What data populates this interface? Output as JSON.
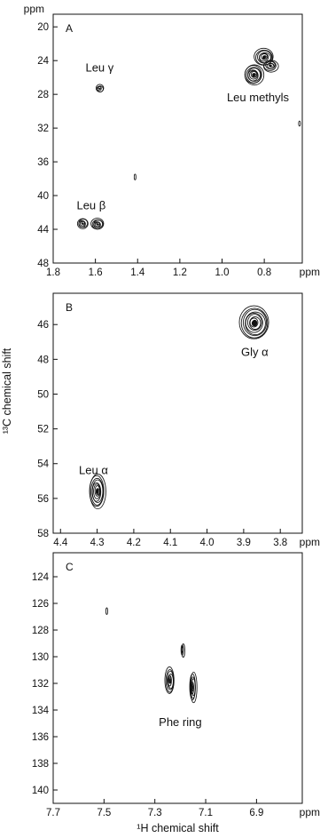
{
  "chart_data": [
    {
      "type": "contour",
      "panel": "A",
      "x_unit": "ppm",
      "y_unit": "ppm",
      "xlim": [
        1.8,
        0.62
      ],
      "ylim": [
        48,
        18.5
      ],
      "xticks": [
        1.8,
        1.6,
        1.4,
        1.2,
        1.0,
        0.8
      ],
      "xtick_labels": [
        "1.8",
        "1.6",
        "1.4",
        "1.2",
        "1.0",
        "0.8"
      ],
      "yticks": [
        20,
        24,
        28,
        32,
        36,
        40,
        44,
        48
      ],
      "ytick_labels": [
        "20",
        "24",
        "28",
        "32",
        "36",
        "40",
        "44",
        "48"
      ],
      "annotations": [
        {
          "text": "Leu γ",
          "x": 1.58,
          "y": 25.3
        },
        {
          "text": "Leu methyls",
          "x": 0.83,
          "y": 28.8
        },
        {
          "text": "Leu β",
          "x": 1.62,
          "y": 41.6
        }
      ],
      "peaks": [
        {
          "x": 0.8,
          "y": 23.6,
          "w": 0.045,
          "h": 1.0,
          "levels": 7
        },
        {
          "x": 0.85,
          "y": 25.7,
          "w": 0.045,
          "h": 1.2,
          "levels": 8
        },
        {
          "x": 0.77,
          "y": 24.6,
          "w": 0.035,
          "h": 0.7,
          "levels": 5
        },
        {
          "x": 1.58,
          "y": 27.3,
          "w": 0.018,
          "h": 0.45,
          "levels": 4
        },
        {
          "x": 1.66,
          "y": 43.3,
          "w": 0.025,
          "h": 0.6,
          "levels": 5
        },
        {
          "x": 1.59,
          "y": 43.4,
          "w": 0.03,
          "h": 0.65,
          "levels": 6
        },
        {
          "x": 1.41,
          "y": 37.8,
          "w": 0.004,
          "h": 0.35,
          "levels": 1
        },
        {
          "x": 0.63,
          "y": 31.4,
          "w": 0.004,
          "h": 0.3,
          "levels": 1
        }
      ]
    },
    {
      "type": "contour",
      "panel": "B",
      "x_unit": "ppm",
      "ylabel": "¹³C chemical shift",
      "xlim": [
        4.42,
        3.74
      ],
      "ylim": [
        58,
        44.2
      ],
      "xticks": [
        4.4,
        4.3,
        4.2,
        4.1,
        4.0,
        3.9,
        3.8
      ],
      "xtick_labels": [
        "4.4",
        "4.3",
        "4.2",
        "4.1",
        "4.0",
        "3.9",
        "3.8"
      ],
      "yticks": [
        46,
        48,
        50,
        52,
        54,
        56,
        58
      ],
      "ytick_labels": [
        "46",
        "48",
        "50",
        "52",
        "54",
        "56",
        "58"
      ],
      "annotations": [
        {
          "text": "Gly α",
          "x": 3.87,
          "y": 47.8
        },
        {
          "text": "Leu α",
          "x": 4.31,
          "y": 54.6
        }
      ],
      "peaks": [
        {
          "x": 3.87,
          "y": 45.9,
          "w": 0.04,
          "h": 0.95,
          "levels": 9
        },
        {
          "x": 4.3,
          "y": 55.6,
          "w": 0.022,
          "h": 1.0,
          "levels": 8
        }
      ]
    },
    {
      "type": "contour",
      "panel": "C",
      "xlabel": "¹H chemical shift",
      "x_unit": "ppm",
      "xlim": [
        7.7,
        6.72
      ],
      "ylim": [
        141,
        122.2
      ],
      "xticks": [
        7.7,
        7.5,
        7.3,
        7.1,
        6.9
      ],
      "xtick_labels": [
        "7.7",
        "7.5",
        "7.3",
        "7.1",
        "6.9"
      ],
      "yticks": [
        124,
        126,
        128,
        130,
        132,
        134,
        136,
        138,
        140
      ],
      "ytick_labels": [
        "124",
        "126",
        "128",
        "130",
        "132",
        "134",
        "136",
        "138",
        "140"
      ],
      "annotations": [
        {
          "text": "Phe ring",
          "x": 7.2,
          "y": 135.2
        }
      ],
      "peaks": [
        {
          "x": 7.24,
          "y": 131.8,
          "w": 0.018,
          "h": 1.0,
          "levels": 6
        },
        {
          "x": 7.15,
          "y": 132.3,
          "w": 0.013,
          "h": 1.15,
          "levels": 6
        },
        {
          "x": 7.19,
          "y": 129.5,
          "w": 0.006,
          "h": 0.5,
          "levels": 3
        },
        {
          "x": 7.49,
          "y": 126.6,
          "w": 0.003,
          "h": 0.25,
          "levels": 1
        }
      ]
    }
  ]
}
